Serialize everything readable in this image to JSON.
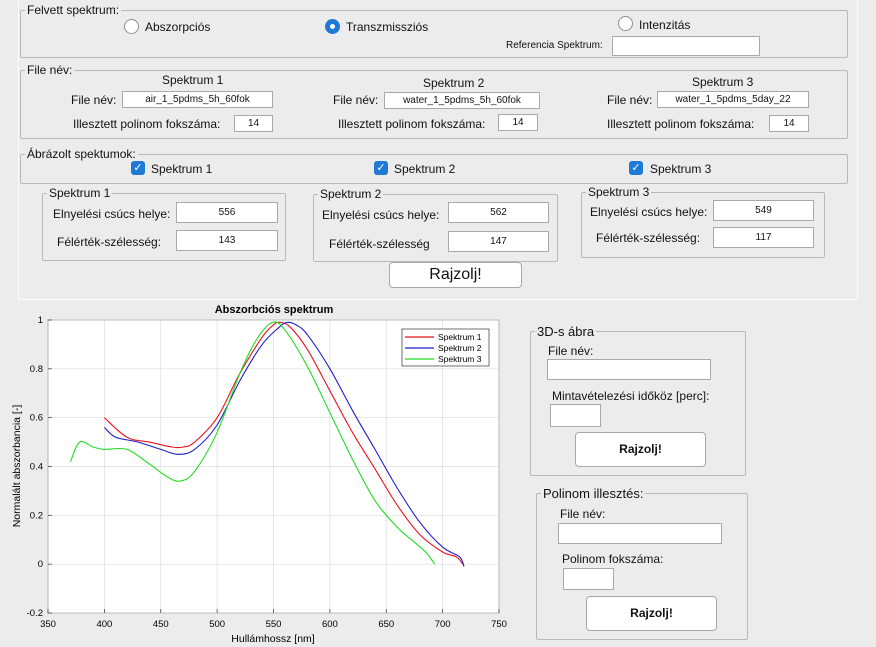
{
  "spectrum_type": {
    "legend": "Felvett spektrum:",
    "options": [
      {
        "label": "Abszorpciós",
        "selected": false
      },
      {
        "label": "Transzmissziós",
        "selected": true
      },
      {
        "label": "Intenzitás",
        "selected": false
      }
    ],
    "reference_label": "Referencia Spektrum:",
    "reference_value": ""
  },
  "files": {
    "legend": "File név:",
    "file_label": "File név:",
    "poly_label": "Illesztett polinom fokszáma:",
    "spectra": [
      {
        "title": "Spektrum 1",
        "file": "air_1_5pdms_5h_60fok",
        "poly": "14"
      },
      {
        "title": "Spektrum 2",
        "file": "water_1_5pdms_5h_60fok",
        "poly": "14"
      },
      {
        "title": "Spektrum 3",
        "file": "water_1_5pdms_5day_22",
        "poly": "14"
      }
    ]
  },
  "plotted": {
    "legend": "Ábrázolt spektumok:",
    "items": [
      {
        "label": "Spektrum 1",
        "checked": true
      },
      {
        "label": "Spektrum 2",
        "checked": true
      },
      {
        "label": "Spektrum 3",
        "checked": true
      }
    ]
  },
  "results": {
    "peak_label": "Elnyelési csúcs helye:",
    "fwhm_label": "Félérték-szélesség:",
    "fwhm_label_2": "Félérték-szélesség",
    "panels": [
      {
        "title": "Spektrum 1",
        "peak": "556",
        "fwhm": "143"
      },
      {
        "title": "Spektrum 2",
        "peak": "562",
        "fwhm": "147"
      },
      {
        "title": "Spektrum 3",
        "peak": "549",
        "fwhm": "117"
      }
    ],
    "draw_button": "Rajzolj!"
  },
  "plot3d": {
    "legend": "3D-s ábra",
    "file_label": "File név:",
    "file_value": "",
    "interval_label": "Mintavételezési időköz [perc]:",
    "interval_value": "",
    "button": "Rajzolj!"
  },
  "polyfit": {
    "legend": "Polinom illesztés:",
    "file_label": "File név:",
    "file_value": "",
    "order_label": "Polinom fokszáma:",
    "order_value": "",
    "button": "Rajzolj!"
  },
  "chart_data": {
    "type": "line",
    "title": "Abszorbciós spektrum",
    "xlabel": "Hullámhossz [nm]",
    "ylabel": "Normalált abszorbancia [-]",
    "xlim": [
      350,
      750
    ],
    "ylim": [
      -0.2,
      1
    ],
    "xticks": [
      350,
      400,
      450,
      500,
      550,
      600,
      650,
      700,
      750
    ],
    "yticks": [
      -0.2,
      0,
      0.2,
      0.4,
      0.6,
      0.8,
      1
    ],
    "grid": true,
    "legend_position": "top-right",
    "series": [
      {
        "name": "Spektrum 1",
        "color": "#e8141c",
        "x": [
          400,
          420,
          440,
          460,
          470,
          480,
          500,
          520,
          540,
          550,
          556,
          565,
          580,
          600,
          620,
          640,
          660,
          680,
          700,
          712,
          718
        ],
        "y": [
          0.6,
          0.52,
          0.5,
          0.48,
          0.48,
          0.5,
          0.6,
          0.78,
          0.93,
          0.98,
          0.99,
          0.97,
          0.88,
          0.71,
          0.54,
          0.39,
          0.24,
          0.12,
          0.05,
          0.03,
          0.0
        ]
      },
      {
        "name": "Spektrum 2",
        "color": "#1f1fcc",
        "x": [
          400,
          410,
          430,
          450,
          465,
          480,
          500,
          520,
          540,
          555,
          562,
          570,
          580,
          600,
          620,
          640,
          660,
          680,
          700,
          715,
          719
        ],
        "y": [
          0.56,
          0.52,
          0.5,
          0.47,
          0.45,
          0.47,
          0.57,
          0.75,
          0.9,
          0.97,
          0.99,
          0.98,
          0.94,
          0.8,
          0.63,
          0.47,
          0.31,
          0.17,
          0.07,
          0.03,
          -0.01
        ]
      },
      {
        "name": "Spektrum 3",
        "color": "#22dd22",
        "x": [
          370,
          378,
          390,
          400,
          420,
          440,
          455,
          467,
          480,
          500,
          520,
          535,
          549,
          560,
          580,
          600,
          620,
          640,
          660,
          675,
          685,
          693
        ],
        "y": [
          0.42,
          0.5,
          0.48,
          0.47,
          0.47,
          0.41,
          0.36,
          0.34,
          0.38,
          0.54,
          0.78,
          0.92,
          0.99,
          0.96,
          0.81,
          0.62,
          0.43,
          0.26,
          0.15,
          0.09,
          0.05,
          0.0
        ]
      }
    ]
  }
}
